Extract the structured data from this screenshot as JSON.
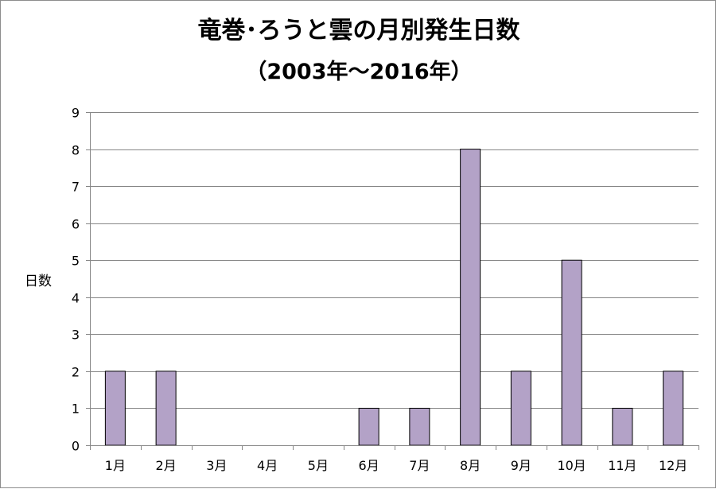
{
  "chart_data": {
    "type": "bar",
    "title": "竜巻･ろうと雲の月別発生日数",
    "subtitle": "（2003年～2016年）",
    "xlabel": "",
    "ylabel": "日数",
    "categories": [
      "1月",
      "2月",
      "3月",
      "4月",
      "5月",
      "6月",
      "7月",
      "8月",
      "9月",
      "10月",
      "11月",
      "12月"
    ],
    "values": [
      2,
      2,
      0,
      0,
      0,
      1,
      1,
      8,
      2,
      5,
      1,
      2
    ],
    "ylim": [
      0,
      9
    ],
    "yticks": [
      0,
      1,
      2,
      3,
      4,
      5,
      6,
      7,
      8,
      9
    ],
    "grid": true,
    "legend": "none",
    "colors": {
      "bar_fill": "#b3a2c7",
      "bar_stroke": "#000000",
      "grid": "#868686",
      "axis": "#868686"
    }
  }
}
